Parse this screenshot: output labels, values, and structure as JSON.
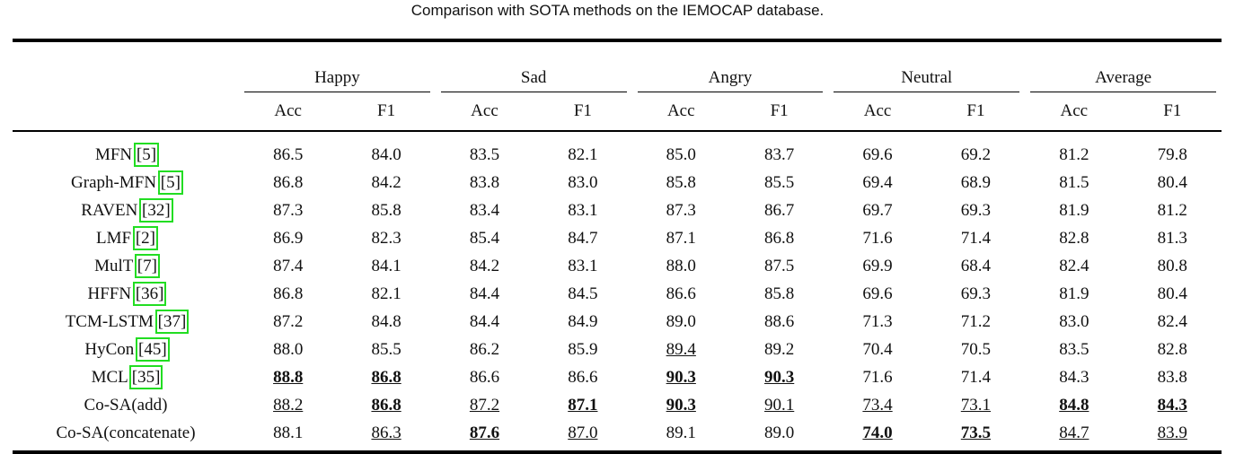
{
  "caption": "Comparison with SOTA methods on the IEMOCAP database.",
  "table": {
    "groups": [
      "Happy",
      "Sad",
      "Angry",
      "Neutral",
      "Average"
    ],
    "subheaders": [
      "Acc",
      "F1",
      "Acc",
      "F1",
      "Acc",
      "F1",
      "Acc",
      "F1",
      "Acc",
      "F1"
    ],
    "rows": [
      {
        "method": "MFN",
        "ref": "[5]",
        "cells": [
          "86.5",
          "84.0",
          "83.5",
          "82.1",
          "85.0",
          "83.7",
          "69.6",
          "69.2",
          "81.2",
          "79.8"
        ],
        "bold": [],
        "underline": []
      },
      {
        "method": "Graph-MFN",
        "ref": "[5]",
        "cells": [
          "86.8",
          "84.2",
          "83.8",
          "83.0",
          "85.8",
          "85.5",
          "69.4",
          "68.9",
          "81.5",
          "80.4"
        ],
        "bold": [],
        "underline": []
      },
      {
        "method": "RAVEN",
        "ref": "[32]",
        "cells": [
          "87.3",
          "85.8",
          "83.4",
          "83.1",
          "87.3",
          "86.7",
          "69.7",
          "69.3",
          "81.9",
          "81.2"
        ],
        "bold": [],
        "underline": []
      },
      {
        "method": "LMF",
        "ref": "[2]",
        "cells": [
          "86.9",
          "82.3",
          "85.4",
          "84.7",
          "87.1",
          "86.8",
          "71.6",
          "71.4",
          "82.8",
          "81.3"
        ],
        "bold": [],
        "underline": []
      },
      {
        "method": "MulT",
        "ref": "[7]",
        "cells": [
          "87.4",
          "84.1",
          "84.2",
          "83.1",
          "88.0",
          "87.5",
          "69.9",
          "68.4",
          "82.4",
          "80.8"
        ],
        "bold": [],
        "underline": []
      },
      {
        "method": "HFFN",
        "ref": "[36]",
        "cells": [
          "86.8",
          "82.1",
          "84.4",
          "84.5",
          "86.6",
          "85.8",
          "69.6",
          "69.3",
          "81.9",
          "80.4"
        ],
        "bold": [],
        "underline": []
      },
      {
        "method": "TCM-LSTM",
        "ref": "[37]",
        "cells": [
          "87.2",
          "84.8",
          "84.4",
          "84.9",
          "89.0",
          "88.6",
          "71.3",
          "71.2",
          "83.0",
          "82.4"
        ],
        "bold": [],
        "underline": []
      },
      {
        "method": "HyCon",
        "ref": "[45]",
        "cells": [
          "88.0",
          "85.5",
          "86.2",
          "85.9",
          "89.4",
          "89.2",
          "70.4",
          "70.5",
          "83.5",
          "82.8"
        ],
        "bold": [],
        "underline": [
          4
        ]
      },
      {
        "method": "MCL",
        "ref": "[35]",
        "cells": [
          "88.8",
          "86.8",
          "86.6",
          "86.6",
          "90.3",
          "90.3",
          "71.6",
          "71.4",
          "84.3",
          "83.8"
        ],
        "bold": [
          0,
          1,
          4,
          5
        ],
        "underline": [
          0,
          1,
          4,
          5
        ]
      },
      {
        "method": "Co-SA(add)",
        "ref": null,
        "cells": [
          "88.2",
          "86.8",
          "87.2",
          "87.1",
          "90.3",
          "90.1",
          "73.4",
          "73.1",
          "84.8",
          "84.3"
        ],
        "bold": [
          1,
          3,
          4,
          8,
          9
        ],
        "underline": [
          0,
          1,
          2,
          3,
          4,
          5,
          6,
          7,
          8,
          9
        ]
      },
      {
        "method": "Co-SA(concatenate)",
        "ref": null,
        "cells": [
          "88.1",
          "86.3",
          "87.6",
          "87.0",
          "89.1",
          "89.0",
          "74.0",
          "73.5",
          "84.7",
          "83.9"
        ],
        "bold": [
          2,
          6,
          7
        ],
        "underline": [
          1,
          2,
          3,
          6,
          7,
          8,
          9
        ]
      }
    ]
  }
}
